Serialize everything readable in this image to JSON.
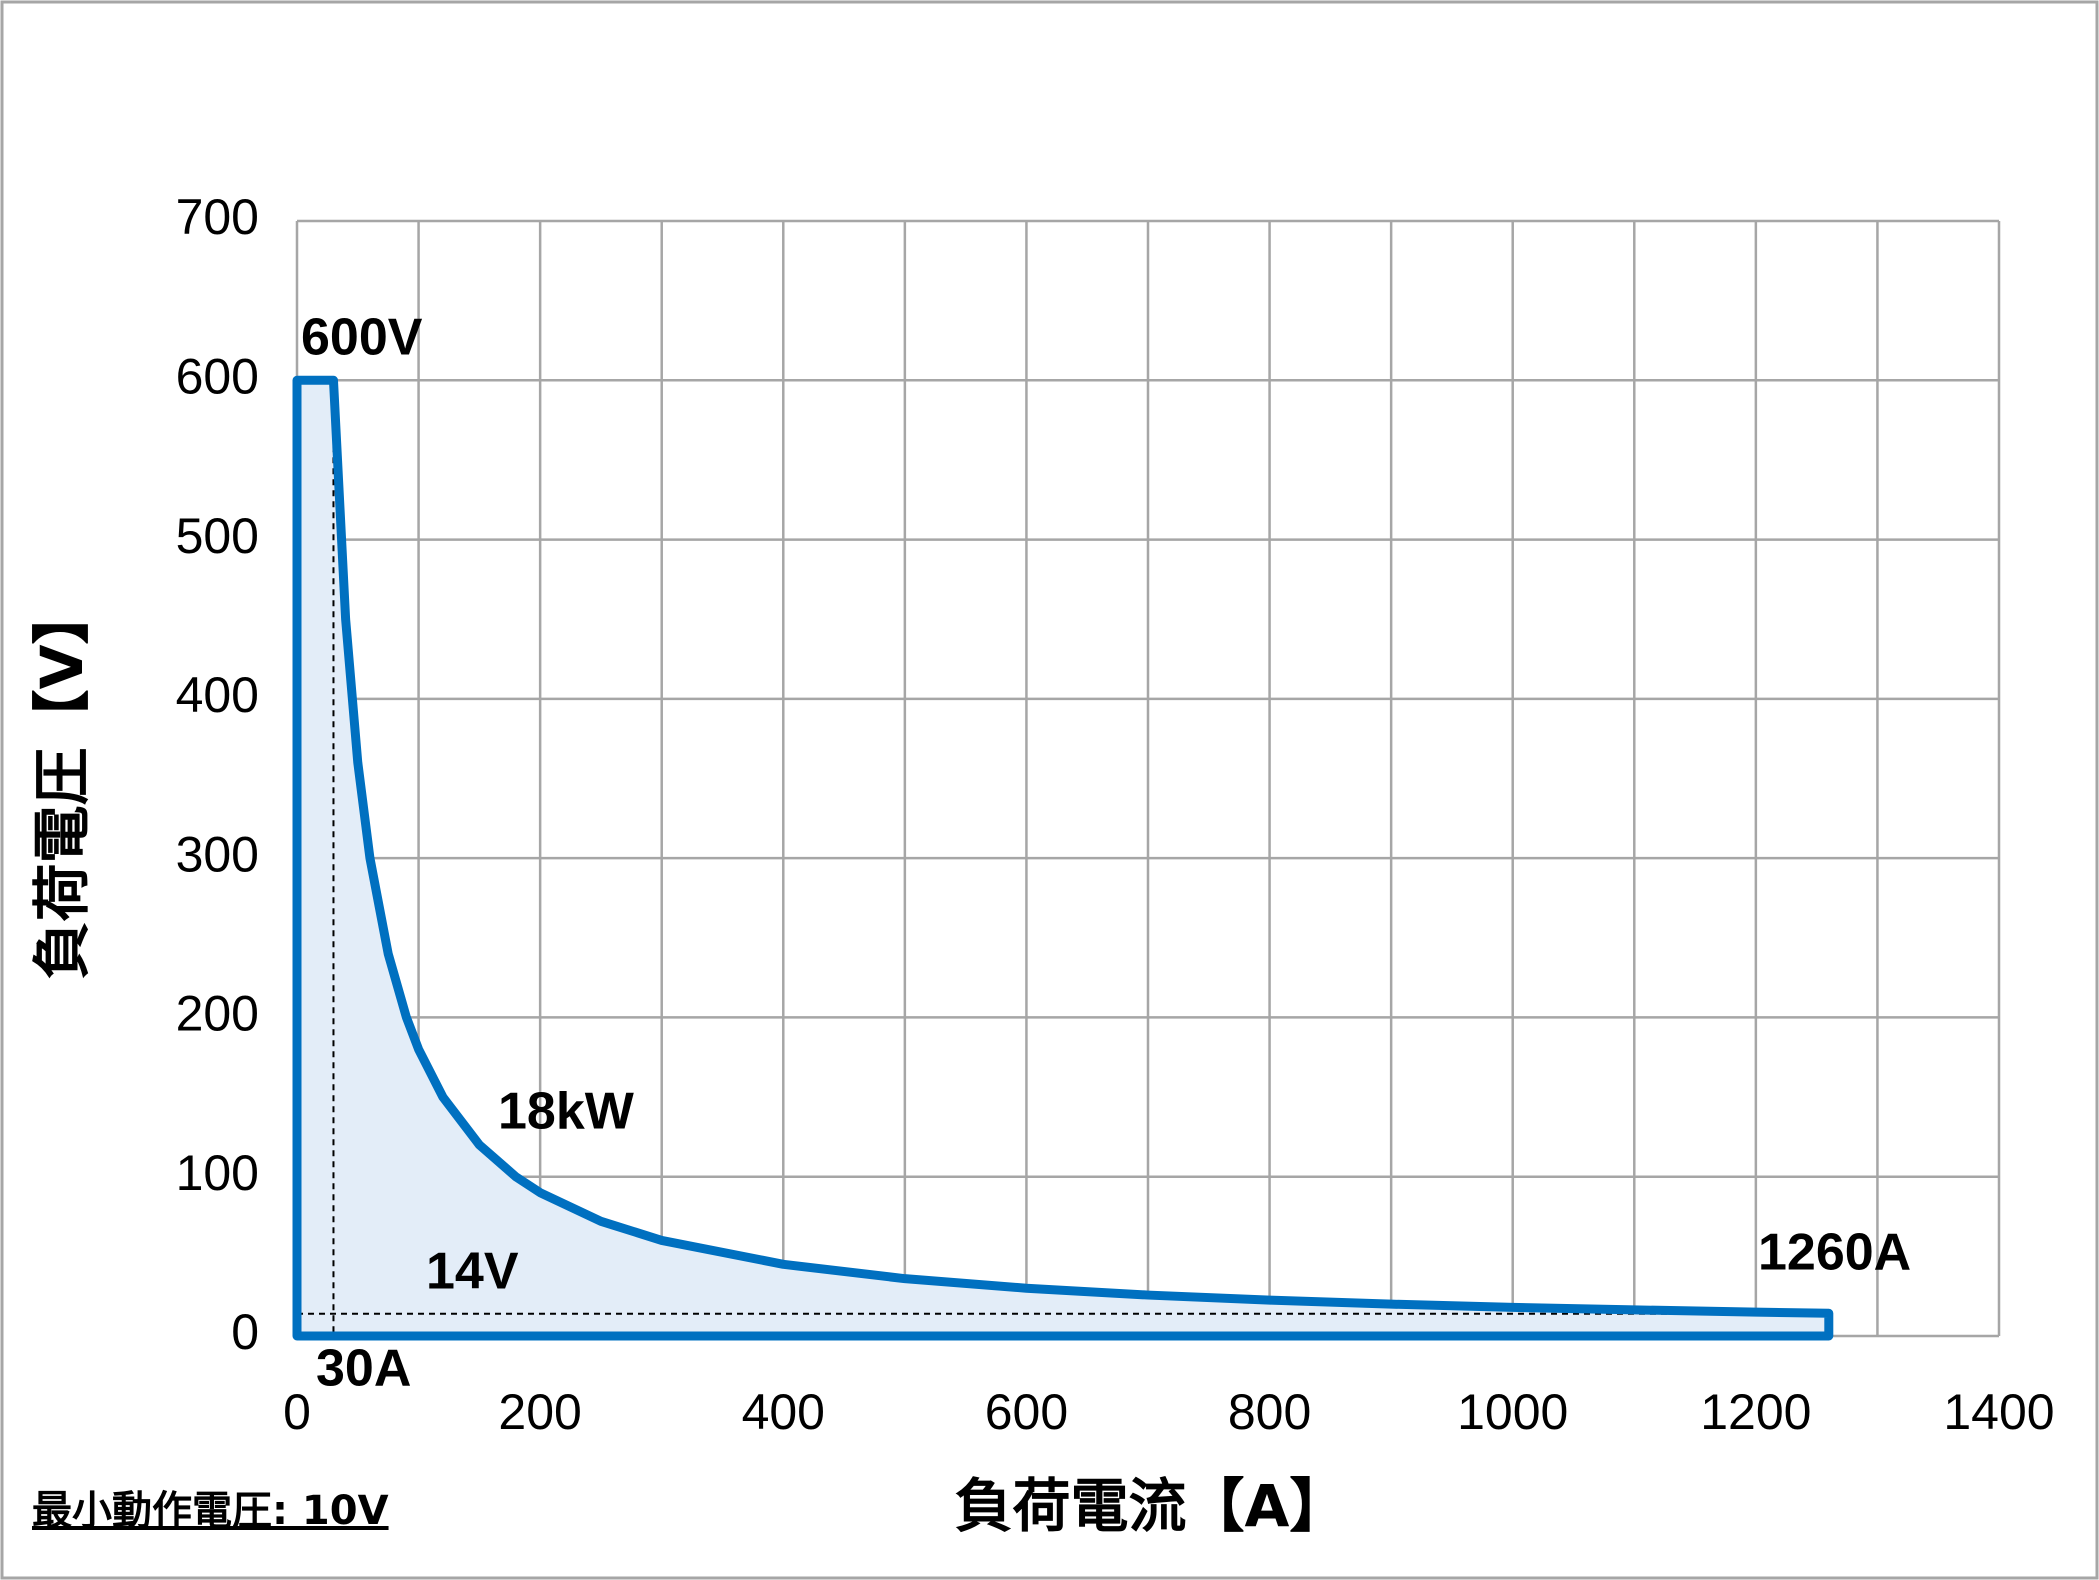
{
  "chart_data": {
    "type": "area",
    "x_title": "負荷電流【A】",
    "y_title": "負荷電圧【V】",
    "footnote": "最小動作電圧: 10V",
    "annotations": [
      "600V",
      "18kW",
      "14V",
      "30A",
      "1260A"
    ],
    "reference_lines": {
      "x": 30,
      "y": 14
    },
    "series": [
      {
        "color": "#0070c0",
        "fill": "#e3edf8",
        "x": [
          0,
          30,
          40,
          50,
          60,
          75,
          90,
          100,
          120,
          150,
          180,
          200,
          250,
          300,
          400,
          500,
          600,
          700,
          800,
          900,
          1000,
          1100,
          1200,
          1260,
          1260,
          0
        ],
        "values": [
          600,
          600,
          450,
          360,
          300,
          240,
          200,
          180,
          150,
          120,
          100,
          90,
          72,
          60,
          45,
          36,
          30,
          25.7,
          22.5,
          20,
          18,
          16.4,
          15,
          14.3,
          0,
          0
        ]
      }
    ],
    "xlim": [
      0,
      1400
    ],
    "xticks": [
      0,
      200,
      400,
      600,
      800,
      1000,
      1200,
      1400
    ],
    "x_minor_grid": [
      100,
      300,
      500,
      700,
      900,
      1100,
      1300
    ],
    "ylim": [
      0,
      700
    ],
    "yticks": [
      0,
      100,
      200,
      300,
      400,
      500,
      600,
      700
    ],
    "grid": true
  }
}
